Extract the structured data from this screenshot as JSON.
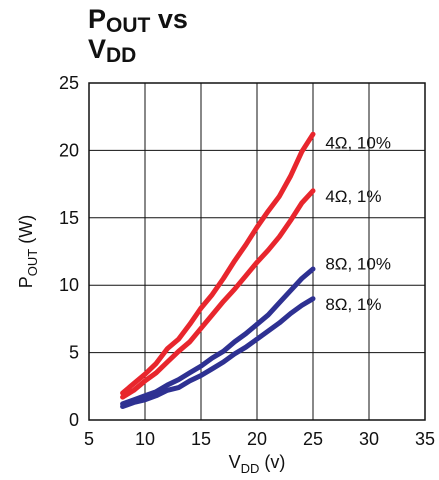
{
  "title": {
    "p_main": "P",
    "p_sub": "OUT",
    "vs": " vs",
    "v_main": "V",
    "v_sub": "DD"
  },
  "chart_data": {
    "type": "line",
    "xlabel_main": "V",
    "xlabel_sub": "DD",
    "xlabel_unit": " (v)",
    "ylabel_main": "P",
    "ylabel_sub": "OUT",
    "ylabel_unit": " (W)",
    "xlim": [
      5,
      35
    ],
    "ylim": [
      0,
      25
    ],
    "x_ticks": [
      5,
      10,
      15,
      20,
      25,
      30,
      35
    ],
    "y_ticks": [
      0,
      5,
      10,
      15,
      20,
      25
    ],
    "grid": true,
    "series": [
      {
        "name": "4Ω, 10%",
        "color": "#e8262d",
        "points": [
          [
            8,
            2.0
          ],
          [
            9,
            2.7
          ],
          [
            10,
            3.4
          ],
          [
            11,
            4.2
          ],
          [
            12,
            5.3
          ],
          [
            13,
            6.0
          ],
          [
            14,
            7.1
          ],
          [
            15,
            8.3
          ],
          [
            16,
            9.3
          ],
          [
            17,
            10.5
          ],
          [
            18,
            11.8
          ],
          [
            19,
            13.0
          ],
          [
            20,
            14.3
          ],
          [
            21,
            15.5
          ],
          [
            22,
            16.6
          ],
          [
            23,
            18.1
          ],
          [
            24,
            19.9
          ],
          [
            25,
            21.2
          ]
        ]
      },
      {
        "name": "4Ω, 1%",
        "color": "#e8262d",
        "points": [
          [
            8,
            1.7
          ],
          [
            9,
            2.2
          ],
          [
            10,
            2.9
          ],
          [
            11,
            3.5
          ],
          [
            12,
            4.3
          ],
          [
            13,
            5.1
          ],
          [
            14,
            5.8
          ],
          [
            15,
            6.8
          ],
          [
            16,
            7.8
          ],
          [
            17,
            8.8
          ],
          [
            18,
            9.7
          ],
          [
            19,
            10.7
          ],
          [
            20,
            11.7
          ],
          [
            21,
            12.6
          ],
          [
            22,
            13.6
          ],
          [
            23,
            14.8
          ],
          [
            24,
            16.1
          ],
          [
            25,
            17.0
          ]
        ]
      },
      {
        "name": "8Ω, 10%",
        "color": "#2e3192",
        "points": [
          [
            8,
            1.2
          ],
          [
            9,
            1.5
          ],
          [
            10,
            1.8
          ],
          [
            11,
            2.1
          ],
          [
            12,
            2.6
          ],
          [
            13,
            3.0
          ],
          [
            14,
            3.5
          ],
          [
            15,
            4.0
          ],
          [
            16,
            4.6
          ],
          [
            17,
            5.1
          ],
          [
            18,
            5.8
          ],
          [
            19,
            6.4
          ],
          [
            20,
            7.1
          ],
          [
            21,
            7.8
          ],
          [
            22,
            8.7
          ],
          [
            23,
            9.6
          ],
          [
            24,
            10.5
          ],
          [
            25,
            11.2
          ]
        ]
      },
      {
        "name": "8Ω, 1%",
        "color": "#2e3192",
        "points": [
          [
            8,
            1.0
          ],
          [
            9,
            1.3
          ],
          [
            10,
            1.5
          ],
          [
            11,
            1.8
          ],
          [
            12,
            2.2
          ],
          [
            13,
            2.4
          ],
          [
            14,
            2.9
          ],
          [
            15,
            3.3
          ],
          [
            16,
            3.8
          ],
          [
            17,
            4.3
          ],
          [
            18,
            4.9
          ],
          [
            19,
            5.4
          ],
          [
            20,
            6.0
          ],
          [
            21,
            6.6
          ],
          [
            22,
            7.2
          ],
          [
            23,
            7.9
          ],
          [
            24,
            8.5
          ],
          [
            25,
            9.0
          ]
        ]
      }
    ],
    "labels": [
      {
        "text": "4Ω, 10%",
        "x": 26.1,
        "y": 20.6
      },
      {
        "text": "4Ω, 1%",
        "x": 26.1,
        "y": 16.6
      },
      {
        "text": "8Ω, 10%",
        "x": 26.1,
        "y": 11.6
      },
      {
        "text": "8Ω, 1%",
        "x": 26.1,
        "y": 8.6
      }
    ]
  }
}
